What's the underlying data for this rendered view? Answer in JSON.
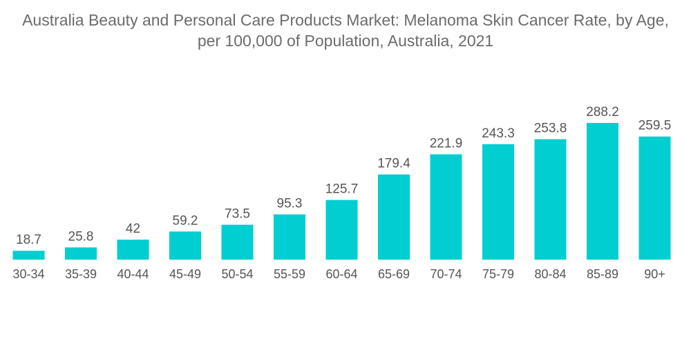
{
  "title": {
    "line1": "Australia Beauty and Personal Care Products Market: Melanoma Skin Cancer Rate, by Age,",
    "line2": "per 100,000 of Population, Australia, 2021"
  },
  "colors": {
    "bar": "#00CED1",
    "text": "#555555"
  },
  "chart_data": {
    "type": "bar",
    "title": "Australia Beauty and Personal Care Products Market: Melanoma Skin Cancer Rate, by Age, per 100,000 of Population, Australia, 2021",
    "categories": [
      "30-34",
      "35-39",
      "40-44",
      "45-49",
      "50-54",
      "55-59",
      "60-64",
      "65-69",
      "70-74",
      "75-79",
      "80-84",
      "85-89",
      "90+"
    ],
    "values": [
      18.7,
      25.8,
      42,
      59.2,
      73.5,
      95.3,
      125.7,
      179.4,
      221.9,
      243.3,
      253.8,
      288.2,
      259.5
    ],
    "value_labels": [
      "18.7",
      "25.8",
      "42",
      "59.2",
      "73.5",
      "95.3",
      "125.7",
      "179.4",
      "221.9",
      "243.3",
      "253.8",
      "288.2",
      "259.5"
    ],
    "xlabel": "",
    "ylabel": "",
    "ylim": [
      0,
      288.2
    ],
    "grid": false,
    "legend": "none"
  }
}
